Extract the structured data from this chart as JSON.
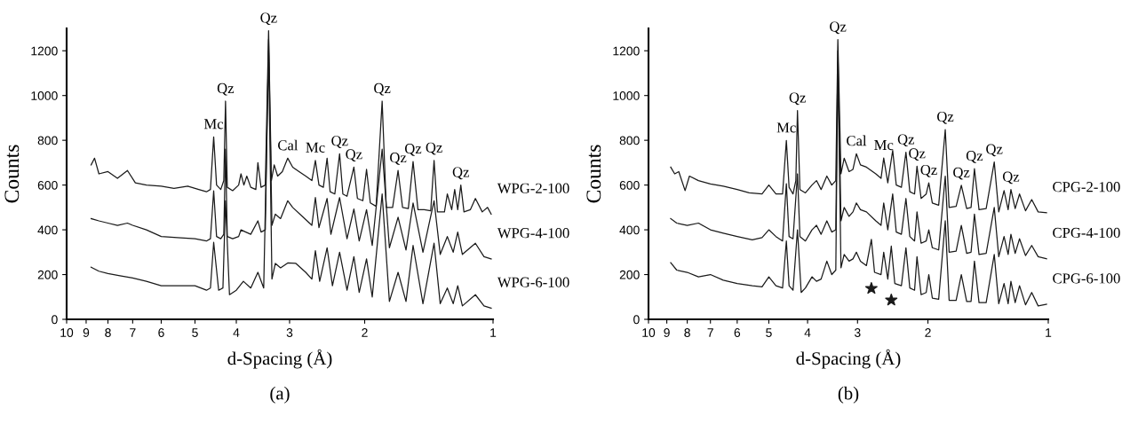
{
  "chart_data": [
    {
      "type": "line",
      "xlabel": "d-Spacing (Å)",
      "ylabel": "Counts",
      "log": "x",
      "xlim": [
        10,
        1
      ],
      "xticks": [
        10,
        9,
        8,
        7,
        6,
        5,
        4,
        3,
        2,
        1
      ],
      "ylim": [
        0,
        1300
      ],
      "yticks": [
        0,
        200,
        400,
        600,
        800,
        1000,
        1200
      ],
      "annotations": [
        "(a)",
        {
          "text": "Mc",
          "x": 4.52,
          "y": 815
        },
        {
          "text": "Qz",
          "x": 4.24,
          "y": 975
        },
        {
          "text": "Qz",
          "x": 3.36,
          "y": 1290
        },
        {
          "text": "Cal",
          "x": 3.03,
          "y": 720
        },
        {
          "text": "Mc",
          "x": 2.61,
          "y": 710
        },
        {
          "text": "Qz",
          "x": 2.29,
          "y": 740
        },
        {
          "text": "Qz",
          "x": 2.12,
          "y": 680
        },
        {
          "text": "Qz",
          "x": 1.82,
          "y": 975
        },
        {
          "text": "Qz",
          "x": 1.67,
          "y": 665
        },
        {
          "text": "Qz",
          "x": 1.54,
          "y": 705
        },
        {
          "text": "Qz",
          "x": 1.375,
          "y": 710
        },
        {
          "text": "Qz",
          "x": 1.19,
          "y": 600
        }
      ],
      "series": [
        {
          "name": "WPG-2-100",
          "color": "#1a1a1a",
          "x": [
            8.76,
            8.6,
            8.4,
            8.0,
            7.6,
            7.2,
            6.9,
            6.5,
            6.0,
            5.6,
            5.2,
            4.9,
            4.7,
            4.6,
            4.52,
            4.45,
            4.35,
            4.28,
            4.24,
            4.2,
            4.08,
            3.95,
            3.9,
            3.84,
            3.78,
            3.7,
            3.6,
            3.56,
            3.5,
            3.42,
            3.36,
            3.31,
            3.26,
            3.2,
            3.12,
            3.03,
            2.95,
            2.85,
            2.75,
            2.66,
            2.61,
            2.56,
            2.5,
            2.45,
            2.41,
            2.35,
            2.29,
            2.25,
            2.2,
            2.12,
            2.08,
            2.02,
            1.98,
            1.94,
            1.88,
            1.82,
            1.78,
            1.72,
            1.67,
            1.63,
            1.58,
            1.54,
            1.5,
            1.45,
            1.4,
            1.375,
            1.35,
            1.3,
            1.28,
            1.25,
            1.23,
            1.21,
            1.19,
            1.17,
            1.13,
            1.1,
            1.06,
            1.03,
            1.01
          ],
          "values": [
            690,
            720,
            650,
            660,
            630,
            665,
            610,
            600,
            595,
            585,
            595,
            580,
            570,
            580,
            815,
            600,
            580,
            620,
            975,
            590,
            575,
            600,
            650,
            600,
            640,
            590,
            580,
            700,
            590,
            600,
            1290,
            620,
            690,
            640,
            660,
            720,
            680,
            660,
            640,
            620,
            710,
            600,
            590,
            720,
            570,
            560,
            740,
            560,
            550,
            680,
            540,
            530,
            670,
            520,
            505,
            975,
            500,
            500,
            665,
            500,
            495,
            705,
            490,
            490,
            485,
            710,
            480,
            480,
            560,
            490,
            580,
            490,
            600,
            480,
            490,
            540,
            480,
            500,
            470
          ]
        },
        {
          "name": "WPG-4-100",
          "color": "#1a1a1a",
          "x": [
            8.76,
            8.4,
            8.0,
            7.6,
            7.2,
            7.0,
            6.5,
            6.0,
            5.5,
            5.0,
            4.7,
            4.6,
            4.52,
            4.45,
            4.35,
            4.28,
            4.24,
            4.2,
            4.08,
            3.95,
            3.9,
            3.8,
            3.7,
            3.56,
            3.5,
            3.42,
            3.36,
            3.3,
            3.24,
            3.15,
            3.03,
            2.95,
            2.8,
            2.66,
            2.61,
            2.56,
            2.45,
            2.4,
            2.29,
            2.2,
            2.12,
            2.06,
            1.98,
            1.92,
            1.82,
            1.75,
            1.67,
            1.6,
            1.54,
            1.46,
            1.375,
            1.33,
            1.28,
            1.24,
            1.21,
            1.18,
            1.1,
            1.05,
            1.01
          ],
          "values": [
            450,
            440,
            430,
            420,
            430,
            420,
            400,
            370,
            365,
            360,
            350,
            360,
            574,
            370,
            360,
            380,
            760,
            370,
            360,
            370,
            400,
            390,
            380,
            440,
            390,
            400,
            1250,
            420,
            470,
            450,
            530,
            500,
            460,
            420,
            544,
            410,
            540,
            380,
            544,
            360,
            493,
            350,
            490,
            330,
            760,
            320,
            456,
            310,
            520,
            300,
            530,
            290,
            370,
            300,
            390,
            290,
            340,
            280,
            270
          ]
        },
        {
          "name": "WPG-6-100",
          "color": "#1a1a1a",
          "x": [
            8.76,
            8.4,
            8.0,
            7.5,
            7.0,
            6.5,
            6.0,
            5.5,
            5.0,
            4.7,
            4.6,
            4.52,
            4.4,
            4.3,
            4.24,
            4.15,
            4.0,
            3.85,
            3.7,
            3.56,
            3.45,
            3.36,
            3.3,
            3.24,
            3.15,
            3.03,
            2.9,
            2.75,
            2.66,
            2.61,
            2.55,
            2.45,
            2.38,
            2.29,
            2.2,
            2.12,
            2.06,
            1.98,
            1.92,
            1.82,
            1.75,
            1.67,
            1.6,
            1.54,
            1.46,
            1.375,
            1.33,
            1.28,
            1.24,
            1.21,
            1.18,
            1.1,
            1.05,
            1.01
          ],
          "values": [
            233,
            215,
            205,
            195,
            185,
            170,
            150,
            150,
            150,
            130,
            140,
            344,
            130,
            140,
            530,
            110,
            130,
            170,
            140,
            210,
            140,
            1200,
            180,
            250,
            230,
            252,
            250,
            210,
            180,
            307,
            170,
            320,
            150,
            300,
            130,
            280,
            120,
            270,
            100,
            560,
            80,
            210,
            80,
            330,
            70,
            340,
            70,
            140,
            70,
            150,
            60,
            110,
            60,
            50
          ]
        }
      ]
    },
    {
      "type": "line",
      "xlabel": "d-Spacing (Å)",
      "ylabel": "Counts",
      "log": "x",
      "xlim": [
        10,
        1
      ],
      "xticks": [
        10,
        9,
        8,
        7,
        6,
        5,
        4,
        3,
        2,
        1
      ],
      "ylim": [
        0,
        1300
      ],
      "yticks": [
        0,
        200,
        400,
        600,
        800,
        1000,
        1200
      ],
      "annotations": [
        "(b)",
        {
          "text": "Mc",
          "x": 4.52,
          "y": 799
        },
        {
          "text": "Qz",
          "x": 4.24,
          "y": 933
        },
        {
          "text": "Qz",
          "x": 3.36,
          "y": 1250
        },
        {
          "text": "Cal",
          "x": 3.02,
          "y": 740
        },
        {
          "text": "Mc",
          "x": 2.58,
          "y": 721
        },
        {
          "text": "Qz",
          "x": 2.27,
          "y": 747
        },
        {
          "text": "Qz",
          "x": 2.13,
          "y": 684
        },
        {
          "text": "Qz",
          "x": 1.99,
          "y": 610
        },
        {
          "text": "Qz",
          "x": 1.81,
          "y": 848
        },
        {
          "text": "Qz",
          "x": 1.65,
          "y": 599
        },
        {
          "text": "Qz",
          "x": 1.53,
          "y": 673
        },
        {
          "text": "Qz",
          "x": 1.365,
          "y": 703
        },
        {
          "text": "Qz",
          "x": 1.24,
          "y": 580
        }
      ],
      "series": [
        {
          "type": "scatter",
          "marker": "star",
          "color": "#1a1a1a",
          "x": [
            2.77,
            2.47
          ],
          "values": [
            138,
            86
          ]
        },
        {
          "name": "CPG-2-100",
          "color": "#1a1a1a",
          "x": [
            8.8,
            8.6,
            8.4,
            8.1,
            7.9,
            7.5,
            7.0,
            6.5,
            6.0,
            5.6,
            5.2,
            5.0,
            4.8,
            4.62,
            4.52,
            4.45,
            4.35,
            4.28,
            4.24,
            4.18,
            4.05,
            3.9,
            3.8,
            3.7,
            3.58,
            3.48,
            3.4,
            3.36,
            3.3,
            3.24,
            3.15,
            3.08,
            3.02,
            2.95,
            2.85,
            2.7,
            2.62,
            2.58,
            2.52,
            2.45,
            2.4,
            2.33,
            2.27,
            2.22,
            2.16,
            2.13,
            2.08,
            2.02,
            1.99,
            1.95,
            1.88,
            1.81,
            1.77,
            1.7,
            1.65,
            1.6,
            1.56,
            1.53,
            1.49,
            1.43,
            1.365,
            1.33,
            1.29,
            1.26,
            1.24,
            1.21,
            1.18,
            1.14,
            1.1,
            1.06,
            1.01
          ],
          "values": [
            680,
            650,
            660,
            575,
            640,
            620,
            605,
            595,
            580,
            565,
            560,
            600,
            560,
            560,
            799,
            590,
            560,
            620,
            933,
            580,
            565,
            600,
            620,
            580,
            640,
            600,
            620,
            1250,
            650,
            720,
            660,
            670,
            740,
            690,
            680,
            650,
            630,
            721,
            610,
            755,
            600,
            590,
            747,
            570,
            560,
            684,
            540,
            560,
            610,
            520,
            510,
            848,
            500,
            505,
            599,
            495,
            500,
            673,
            490,
            495,
            703,
            480,
            575,
            490,
            580,
            495,
            560,
            485,
            535,
            480,
            476
          ]
        },
        {
          "name": "CPG-4-100",
          "color": "#1a1a1a",
          "x": [
            8.8,
            8.5,
            8.0,
            7.5,
            7.0,
            6.5,
            6.0,
            5.5,
            5.2,
            5.0,
            4.8,
            4.62,
            4.52,
            4.45,
            4.35,
            4.24,
            4.18,
            4.05,
            3.9,
            3.8,
            3.7,
            3.58,
            3.48,
            3.4,
            3.36,
            3.3,
            3.24,
            3.15,
            3.08,
            3.02,
            2.95,
            2.85,
            2.7,
            2.62,
            2.58,
            2.52,
            2.45,
            2.4,
            2.33,
            2.27,
            2.22,
            2.16,
            2.13,
            2.08,
            2.02,
            1.99,
            1.95,
            1.88,
            1.81,
            1.77,
            1.7,
            1.65,
            1.6,
            1.56,
            1.53,
            1.49,
            1.43,
            1.365,
            1.33,
            1.29,
            1.26,
            1.24,
            1.21,
            1.18,
            1.14,
            1.1,
            1.06,
            1.01
          ],
          "values": [
            450,
            430,
            420,
            430,
            400,
            385,
            370,
            355,
            365,
            400,
            370,
            350,
            606,
            370,
            360,
            650,
            370,
            350,
            400,
            420,
            380,
            440,
            390,
            400,
            1200,
            440,
            500,
            460,
            480,
            520,
            490,
            480,
            440,
            420,
            520,
            400,
            560,
            390,
            380,
            540,
            370,
            350,
            480,
            340,
            350,
            400,
            320,
            310,
            640,
            300,
            305,
            420,
            295,
            300,
            470,
            290,
            295,
            500,
            280,
            370,
            290,
            380,
            295,
            360,
            285,
            330,
            280,
            271
          ]
        },
        {
          "name": "CPG-6-100",
          "color": "#1a1a1a",
          "x": [
            8.8,
            8.5,
            8.0,
            7.5,
            7.0,
            6.5,
            6.0,
            5.5,
            5.2,
            5.0,
            4.8,
            4.62,
            4.52,
            4.45,
            4.35,
            4.24,
            4.15,
            4.05,
            3.9,
            3.8,
            3.7,
            3.58,
            3.48,
            3.4,
            3.36,
            3.3,
            3.24,
            3.15,
            3.08,
            3.02,
            2.95,
            2.85,
            2.77,
            2.72,
            2.62,
            2.58,
            2.52,
            2.47,
            2.42,
            2.33,
            2.27,
            2.22,
            2.16,
            2.13,
            2.08,
            2.02,
            1.99,
            1.95,
            1.88,
            1.81,
            1.77,
            1.7,
            1.65,
            1.6,
            1.56,
            1.53,
            1.49,
            1.43,
            1.365,
            1.33,
            1.29,
            1.26,
            1.24,
            1.21,
            1.18,
            1.14,
            1.1,
            1.06,
            1.01
          ],
          "values": [
            253,
            220,
            210,
            190,
            200,
            175,
            160,
            150,
            145,
            190,
            150,
            140,
            350,
            150,
            130,
            400,
            120,
            140,
            190,
            170,
            180,
            260,
            200,
            220,
            1150,
            230,
            290,
            260,
            270,
            300,
            260,
            240,
            357,
            210,
            200,
            300,
            180,
            327,
            160,
            150,
            320,
            140,
            130,
            280,
            110,
            120,
            200,
            95,
            90,
            440,
            85,
            85,
            200,
            80,
            80,
            260,
            75,
            75,
            290,
            70,
            160,
            70,
            170,
            75,
            150,
            65,
            120,
            60,
            67
          ]
        }
      ]
    }
  ]
}
